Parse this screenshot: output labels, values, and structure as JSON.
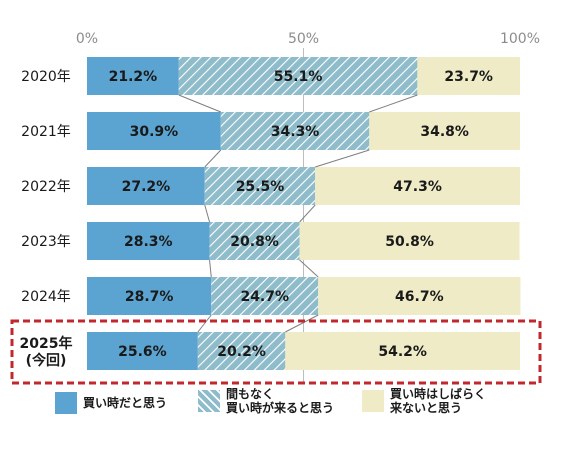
{
  "chart_data": {
    "type": "bar",
    "orientation": "horizontal",
    "stacked": true,
    "percent_stacked": true,
    "categories": [
      "2020年",
      "2021年",
      "2022年",
      "2023年",
      "2024年",
      "2025年\n(今回)"
    ],
    "highlight_category_index": 5,
    "series": [
      {
        "name": "買い時だと思う",
        "color": "#5ba3d0",
        "pattern": "solid",
        "values": [
          21.2,
          30.9,
          27.2,
          28.3,
          28.7,
          25.6
        ]
      },
      {
        "name": "間もなく\n買い時が来ると思う",
        "color": "#8fbccb",
        "pattern": "hatched",
        "values": [
          55.1,
          34.3,
          25.5,
          20.8,
          24.7,
          20.2
        ]
      },
      {
        "name": "買い時はしばらく\n来ないと思う",
        "color": "#eeebc6",
        "pattern": "solid",
        "values": [
          23.7,
          34.8,
          47.3,
          50.8,
          46.7,
          54.2
        ]
      }
    ],
    "value_labels": [
      [
        "21.2%",
        "30.9%",
        "27.2%",
        "28.3%",
        "28.7%",
        "25.6%"
      ],
      [
        "55.1%",
        "34.3%",
        "25.5%",
        "20.8%",
        "24.7%",
        "20.2%"
      ],
      [
        "23.7%",
        "34.8%",
        "47.3%",
        "50.8%",
        "46.7%",
        "54.2%"
      ]
    ],
    "x_ticks": [
      "0%",
      "50%",
      "100%"
    ],
    "xlim": [
      0,
      100
    ],
    "grid": "vertical at 50%",
    "connector_lines": true,
    "legend_position": "bottom",
    "highlight_box_color": "#c0282d"
  }
}
